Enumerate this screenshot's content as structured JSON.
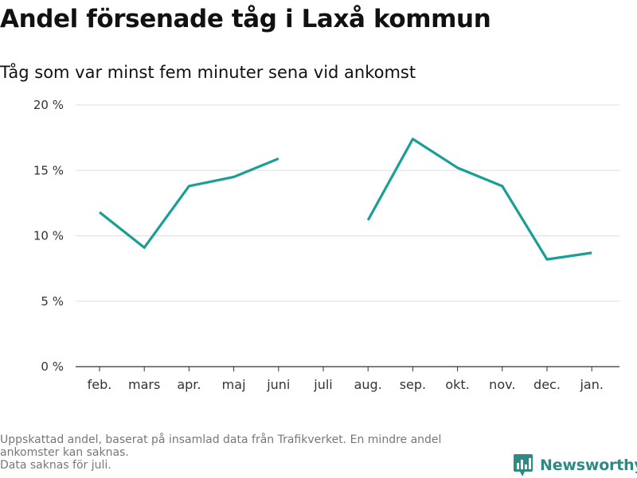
{
  "title": "Andel försenade tåg i Laxå kommun",
  "subtitle": "Tåg som var minst fem minuter sena vid ankomst",
  "footnote": {
    "line1": "Uppskattad andel, baserat på insamlad data från Trafikverket. En mindre andel ankomster kan saknas.",
    "line2": "Data saknas för juli."
  },
  "brand": {
    "name": "Newsworthy",
    "color": "#2e8b84"
  },
  "chart_data": {
    "type": "line",
    "categories": [
      "feb.",
      "mars",
      "apr.",
      "maj",
      "juni",
      "juli",
      "aug.",
      "sep.",
      "okt.",
      "nov.",
      "dec.",
      "jan."
    ],
    "series": [
      {
        "values": [
          11.8,
          9.1,
          13.8,
          14.5,
          15.9,
          null,
          11.2,
          17.4,
          15.2,
          13.8,
          8.2,
          8.7
        ],
        "color": "#1a9e96"
      }
    ],
    "yticks": [
      "0 %",
      "5 %",
      "10 %",
      "15 %",
      "20 %"
    ],
    "ylim": [
      0,
      20
    ],
    "grid": true,
    "legend": "none"
  }
}
